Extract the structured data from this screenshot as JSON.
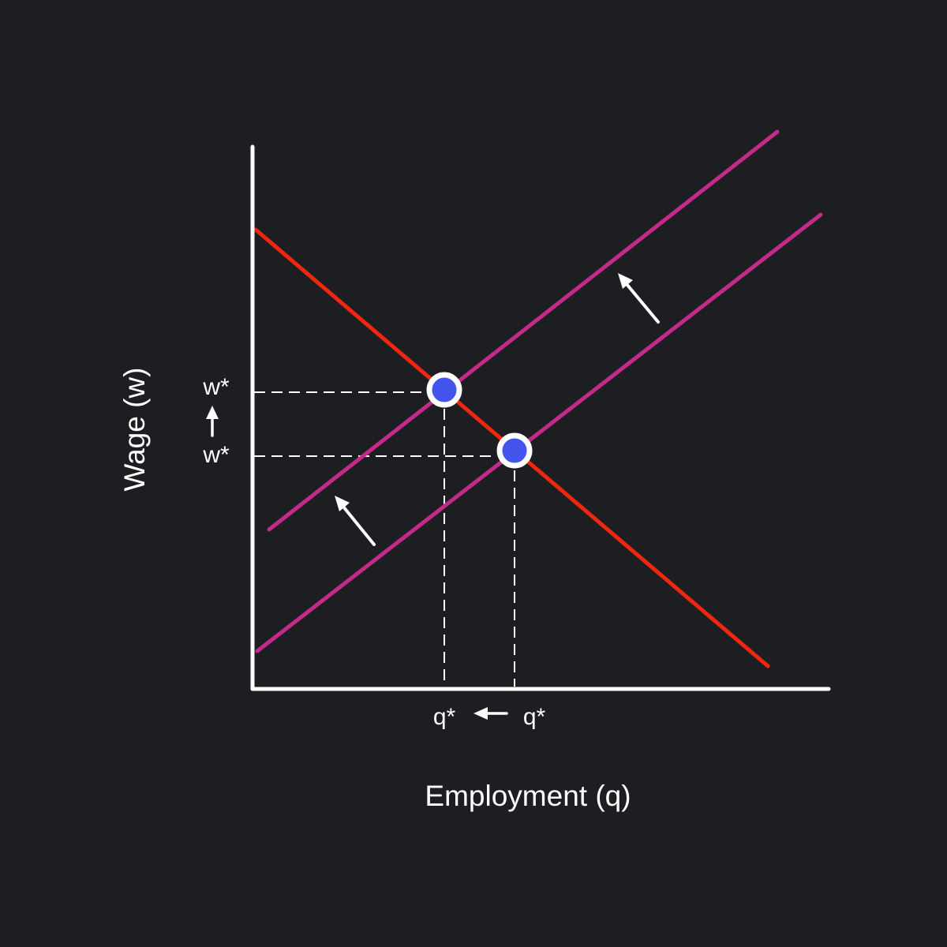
{
  "diagram": {
    "x_axis_label": "Employment (q)",
    "y_axis_label": "Wage (w)",
    "w_old_label": "w*",
    "w_new_label": "w*",
    "q_new_label": "q*",
    "q_old_label": "q*"
  },
  "colors": {
    "background": "#1d1e22",
    "axis": "#ffffff",
    "demand_curve": "#f0260f",
    "supply_curve": "#c42a8a",
    "equilibrium_fill": "#4455ee",
    "equilibrium_ring": "#ffffff",
    "shift_arrow": "#ffffff",
    "guide_line": "#ffffff"
  },
  "icons": {
    "shift_arrows": "up-left-arrow",
    "wage_change": "up-arrow",
    "quantity_change": "left-arrow"
  }
}
